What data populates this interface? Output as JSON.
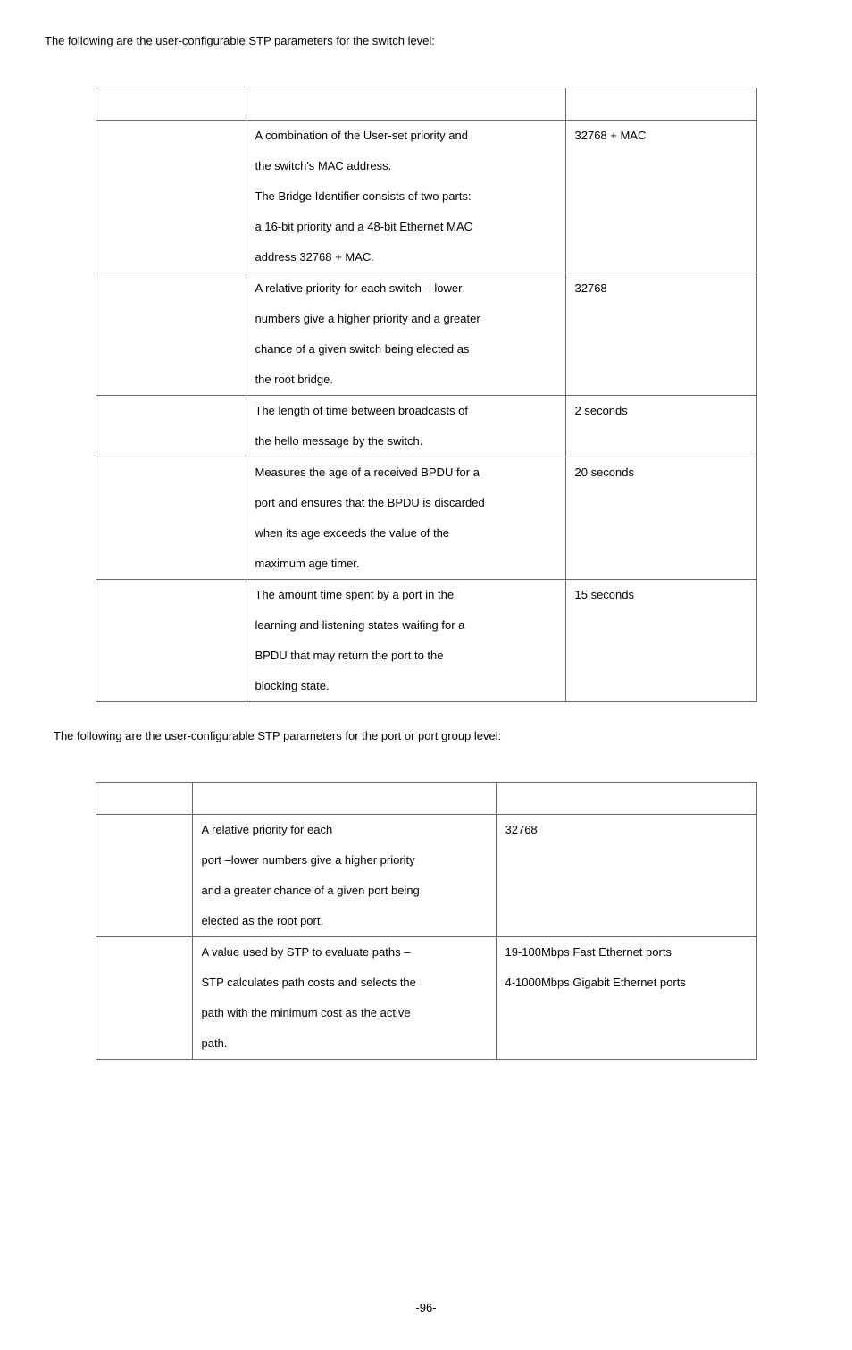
{
  "intro1": "The following are the user-configurable STP parameters for the switch level:",
  "intro2": "The following are the user-configurable STP parameters for the port or port group level:",
  "table1": {
    "rows": [
      {
        "desc": [
          "A combination of the User-set priority and",
          "the switch's MAC address.",
          "The Bridge Identifier consists of two parts:",
          "a 16-bit priority and a 48-bit Ethernet MAC",
          "address 32768 + MAC."
        ],
        "default": "32768 + MAC"
      },
      {
        "desc": [
          "A relative priority for each switch – lower",
          "numbers give a higher priority and a greater",
          "chance of a given switch being elected as",
          "the root bridge."
        ],
        "default": "32768"
      },
      {
        "desc": [
          "The length of time between broadcasts of",
          "the hello message by the switch."
        ],
        "default": "2 seconds"
      },
      {
        "desc": [
          "Measures the age of a received BPDU for a",
          "port and ensures that the BPDU is discarded",
          "when its age exceeds the value of the",
          "maximum age timer."
        ],
        "default": "20 seconds"
      },
      {
        "desc": [
          "The amount time spent by a port in the",
          "learning and listening states waiting for a",
          "BPDU that may return the port to the",
          "blocking state."
        ],
        "default": "15 seconds"
      }
    ]
  },
  "table2": {
    "rows": [
      {
        "desc": [
          "A relative priority for each",
          "port –lower numbers give a higher priority",
          "and a greater chance of a given port being",
          "elected as the root port."
        ],
        "default": [
          "32768"
        ]
      },
      {
        "desc": [
          "A value used by STP to evaluate paths –",
          "STP calculates path costs and selects the",
          "path with the minimum cost as the active",
          "path."
        ],
        "default": [
          "19-100Mbps Fast Ethernet ports",
          "4-1000Mbps Gigabit Ethernet ports"
        ]
      }
    ]
  },
  "pageNumber": "-96-"
}
